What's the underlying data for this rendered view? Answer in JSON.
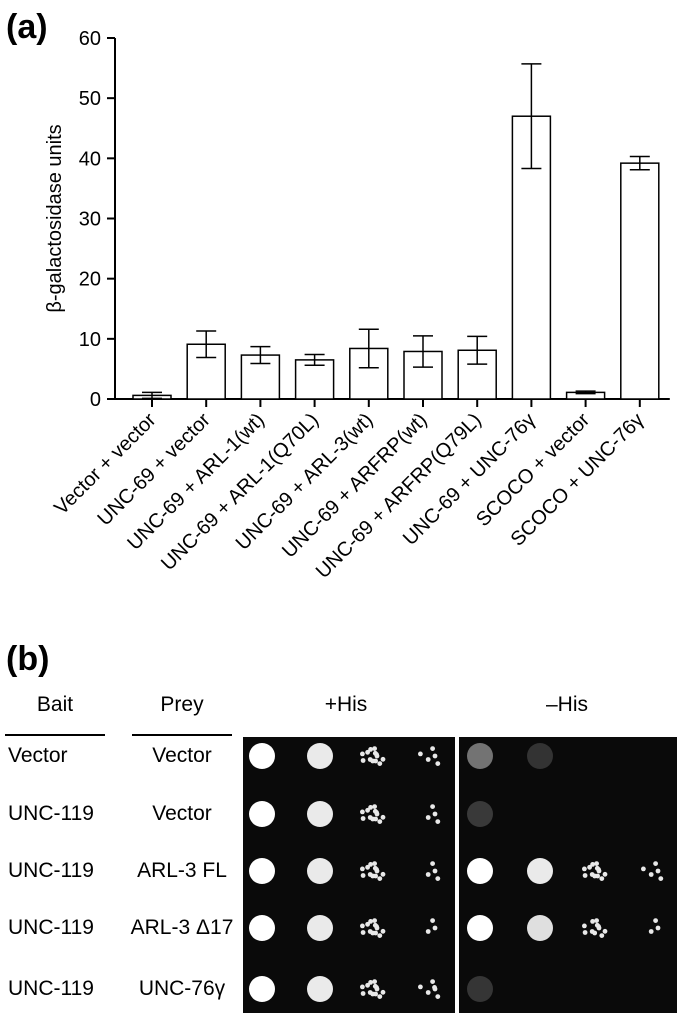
{
  "panel_a_label": "(a)",
  "panel_b_label": "(b)",
  "chart_data": {
    "type": "bar",
    "title": "",
    "xlabel": "",
    "ylabel": "β-galactosidase units",
    "ylim": [
      0,
      60
    ],
    "yticks": [
      0,
      10,
      20,
      30,
      40,
      50,
      60
    ],
    "categories": [
      "Vector + vector",
      "UNC-69 + vector",
      "UNC-69 + ARL-1(wt)",
      "UNC-69 + ARL-1(Q70L)",
      "UNC-69 + ARL-3(wt)",
      "UNC-69 + ARFRP(wt)",
      "UNC-69 + ARFRP(Q79L)",
      "UNC-69 + UNC-76γ",
      "SCOCO + vector",
      "SCOCO + UNC-76γ"
    ],
    "values": [
      0.6,
      9.1,
      7.3,
      6.5,
      8.4,
      7.9,
      8.1,
      47.0,
      1.1,
      39.2
    ],
    "error": [
      0.5,
      2.2,
      1.4,
      0.9,
      3.2,
      2.6,
      2.3,
      8.7,
      0.2,
      1.1
    ],
    "grid": false
  },
  "table": {
    "headers": {
      "bait": "Bait",
      "prey": "Prey",
      "plus_his": "+His",
      "minus_his": "–His"
    },
    "rows": [
      {
        "bait": "Vector",
        "prey": "Vector",
        "plus": [
          1,
          0.9,
          0.7,
          0.3
        ],
        "minus": [
          0.35,
          0.05,
          0,
          0
        ]
      },
      {
        "bait": "UNC-119",
        "prey": "Vector",
        "plus": [
          1,
          0.9,
          0.7,
          0.2
        ],
        "minus": [
          0.08,
          0,
          0,
          0
        ]
      },
      {
        "bait": "UNC-119",
        "prey": "ARL-3 FL",
        "plus": [
          1,
          0.9,
          0.7,
          0.2
        ],
        "minus": [
          1,
          0.9,
          0.7,
          0.3
        ]
      },
      {
        "bait": "UNC-119",
        "prey": "ARL-3 Δ17",
        "plus": [
          1,
          0.9,
          0.7,
          0.15
        ],
        "minus": [
          1,
          0.85,
          0.6,
          0.15
        ]
      },
      {
        "bait": "UNC-119",
        "prey": "UNC-76γ",
        "plus": [
          1,
          0.9,
          0.7,
          0.35
        ],
        "minus": [
          0.06,
          0,
          0,
          0
        ]
      }
    ]
  }
}
